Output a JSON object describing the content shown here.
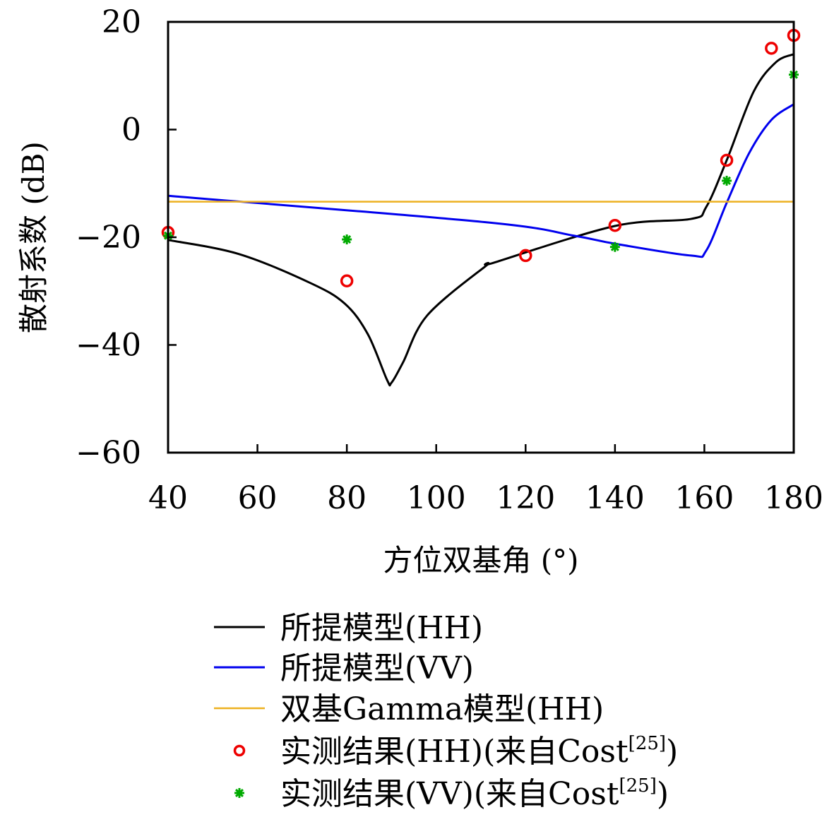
{
  "chart_data": {
    "type": "line",
    "title": "",
    "xlabel": "方位双基角 (°)",
    "ylabel": "散射系数 (dB)",
    "xlim": [
      40,
      180
    ],
    "ylim": [
      -60,
      20
    ],
    "xticks": [
      40,
      60,
      80,
      100,
      120,
      140,
      160,
      180
    ],
    "yticks": [
      20,
      0,
      -20,
      -40,
      -60
    ],
    "ytick_labels": [
      "20",
      "0",
      "−20",
      "−40",
      "−60"
    ],
    "grid": false,
    "legend_position": "bottom (below plot)",
    "series": [
      {
        "name": "所提模型(HH)",
        "kind": "line",
        "color": "#000000",
        "x": [
          40,
          55.8,
          71.6,
          79.5,
          84.7,
          89,
          90,
          92.6,
          98,
          111,
          113,
          140,
          157,
          160.4,
          165,
          171,
          176,
          180
        ],
        "y": [
          -20.5,
          -23.1,
          -28.4,
          -32.3,
          -38,
          -46.5,
          -47,
          -43.2,
          -34.5,
          -25.4,
          -24.7,
          -17.9,
          -16.6,
          -14.4,
          -5.7,
          7,
          12.5,
          14
        ]
      },
      {
        "name": "所提模型(VV)",
        "kind": "line",
        "color": "#0000ee",
        "x": [
          40,
          111,
          130.8,
          140,
          157,
          160.4,
          165,
          170,
          175,
          180
        ],
        "y": [
          -12.3,
          -17.2,
          -19.7,
          -21.2,
          -23.4,
          -22.5,
          -13.6,
          -4.4,
          1.8,
          4.7
        ]
      },
      {
        "name": "双基Gamma模型(HH)",
        "kind": "line",
        "color": "#edb120",
        "x": [
          40,
          180
        ],
        "y": [
          -13.4,
          -13.4
        ]
      },
      {
        "name": "实测结果(HH)(来自Cost",
        "name_sup": "[25]",
        "name_end": ")",
        "kind": "scatter",
        "marker": "circle",
        "color": "#ee0000",
        "x": [
          40,
          80,
          120,
          140,
          165,
          175,
          180
        ],
        "y": [
          -19.1,
          -28.1,
          -23.4,
          -17.8,
          -5.7,
          15.1,
          17.5
        ]
      },
      {
        "name": "实测结果(VV)(来自Cost",
        "name_sup": "[25]",
        "name_end": ")",
        "kind": "scatter",
        "marker": "asterisk",
        "color": "#00aa00",
        "x": [
          40,
          80,
          140,
          165,
          180
        ],
        "y": [
          -19.7,
          -20.4,
          -21.8,
          -9.5,
          10.2
        ]
      }
    ]
  }
}
